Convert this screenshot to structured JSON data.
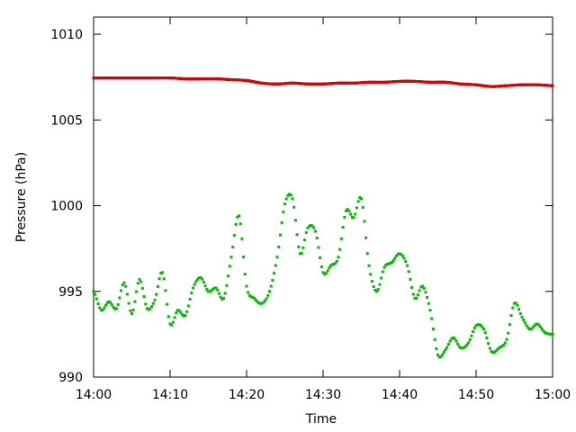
{
  "chart_data": {
    "type": "scatter",
    "title": "",
    "xlabel": "Time",
    "ylabel": "Pressure (hPa)",
    "xlim": [
      "14:00",
      "15:00"
    ],
    "ylim": [
      990,
      1011
    ],
    "x_ticks": [
      "14:00",
      "14:10",
      "14:20",
      "14:30",
      "14:40",
      "14:50",
      "15:00"
    ],
    "y_ticks": [
      "990",
      "995",
      "1000",
      "1005",
      "1010"
    ],
    "grid": false,
    "legend": "none",
    "series": [
      {
        "color": "#dd0000",
        "points": [
          [
            "14:00",
            1007.45
          ],
          [
            "14:02",
            1007.45
          ],
          [
            "14:04",
            1007.45
          ],
          [
            "14:06",
            1007.45
          ],
          [
            "14:08",
            1007.45
          ],
          [
            "14:10",
            1007.45
          ],
          [
            "14:12",
            1007.4
          ],
          [
            "14:14",
            1007.4
          ],
          [
            "14:16",
            1007.4
          ],
          [
            "14:18",
            1007.35
          ],
          [
            "14:20",
            1007.3
          ],
          [
            "14:22",
            1007.15
          ],
          [
            "14:24",
            1007.1
          ],
          [
            "14:26",
            1007.15
          ],
          [
            "14:28",
            1007.1
          ],
          [
            "14:30",
            1007.1
          ],
          [
            "14:32",
            1007.15
          ],
          [
            "14:34",
            1007.15
          ],
          [
            "14:36",
            1007.2
          ],
          [
            "14:38",
            1007.2
          ],
          [
            "14:40",
            1007.25
          ],
          [
            "14:42",
            1007.25
          ],
          [
            "14:44",
            1007.2
          ],
          [
            "14:46",
            1007.2
          ],
          [
            "14:48",
            1007.1
          ],
          [
            "14:50",
            1007.05
          ],
          [
            "14:52",
            1006.95
          ],
          [
            "14:54",
            1007.0
          ],
          [
            "14:56",
            1007.05
          ],
          [
            "14:58",
            1007.05
          ],
          [
            "15:00",
            1007.0
          ]
        ]
      },
      {
        "color": "#00bb00",
        "points": [
          [
            "14:00",
            995.0
          ],
          [
            "14:01",
            993.9
          ],
          [
            "14:02",
            994.4
          ],
          [
            "14:03",
            994.0
          ],
          [
            "14:04",
            995.5
          ],
          [
            "14:05",
            993.7
          ],
          [
            "14:06",
            995.7
          ],
          [
            "14:07",
            994.0
          ],
          [
            "14:08",
            994.5
          ],
          [
            "14:09",
            996.1
          ],
          [
            "14:10",
            993.1
          ],
          [
            "14:11",
            993.9
          ],
          [
            "14:12",
            993.6
          ],
          [
            "14:13",
            995.2
          ],
          [
            "14:14",
            995.8
          ],
          [
            "14:15",
            995.0
          ],
          [
            "14:16",
            995.2
          ],
          [
            "14:17",
            994.6
          ],
          [
            "14:18",
            997.0
          ],
          [
            "14:19",
            999.4
          ],
          [
            "14:20",
            995.3
          ],
          [
            "14:21",
            994.6
          ],
          [
            "14:22",
            994.3
          ],
          [
            "14:23",
            995.0
          ],
          [
            "14:24",
            997.0
          ],
          [
            "14:25",
            1000.1
          ],
          [
            "14:26",
            1000.4
          ],
          [
            "14:27",
            997.2
          ],
          [
            "14:28",
            998.7
          ],
          [
            "14:29",
            998.5
          ],
          [
            "14:30",
            996.1
          ],
          [
            "14:31",
            996.5
          ],
          [
            "14:32",
            997.0
          ],
          [
            "14:33",
            999.7
          ],
          [
            "14:34",
            999.3
          ],
          [
            "14:35",
            1000.4
          ],
          [
            "14:36",
            996.5
          ],
          [
            "14:37",
            995.0
          ],
          [
            "14:38",
            996.4
          ],
          [
            "14:39",
            996.7
          ],
          [
            "14:40",
            997.2
          ],
          [
            "14:41",
            996.5
          ],
          [
            "14:42",
            994.6
          ],
          [
            "14:43",
            995.3
          ],
          [
            "14:44",
            993.9
          ],
          [
            "14:45",
            991.3
          ],
          [
            "14:46",
            991.6
          ],
          [
            "14:47",
            992.3
          ],
          [
            "14:48",
            991.7
          ],
          [
            "14:49",
            992.0
          ],
          [
            "14:50",
            993.0
          ],
          [
            "14:51",
            992.8
          ],
          [
            "14:52",
            991.5
          ],
          [
            "14:53",
            991.7
          ],
          [
            "14:54",
            992.2
          ],
          [
            "14:55",
            994.3
          ],
          [
            "14:56",
            993.5
          ],
          [
            "14:57",
            992.8
          ],
          [
            "14:58",
            993.1
          ],
          [
            "14:59",
            992.6
          ],
          [
            "15:00",
            992.5
          ]
        ]
      }
    ]
  }
}
